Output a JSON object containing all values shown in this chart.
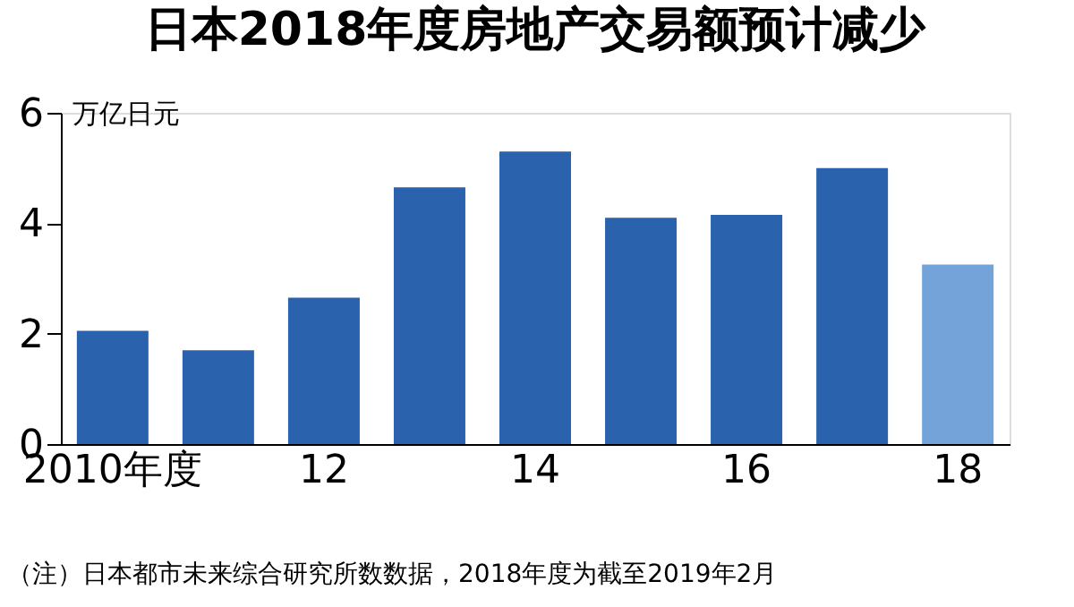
{
  "chart_data": {
    "type": "bar",
    "title": "日本2018年度房地产交易额预计减少",
    "ylabel": "万亿日元",
    "categories": [
      "2010年度",
      null,
      "12",
      null,
      "14",
      null,
      "16",
      null,
      "18"
    ],
    "values": [
      2.05,
      1.7,
      2.65,
      4.65,
      5.3,
      4.1,
      4.15,
      5.0,
      3.25
    ],
    "colors": [
      "#2a62ad",
      "#2a62ad",
      "#2a62ad",
      "#2a62ad",
      "#2a62ad",
      "#2a62ad",
      "#2a62ad",
      "#2a62ad",
      "#74a3d9"
    ],
    "ylim": [
      0,
      6
    ],
    "yticks": [
      0,
      2,
      4,
      6
    ],
    "grid": false,
    "annotations": [
      "（注）日本都市未来综合研究所数数据，2018年度为截至2019年2月"
    ]
  }
}
